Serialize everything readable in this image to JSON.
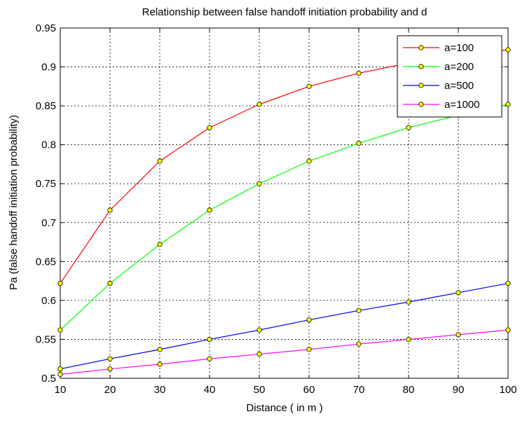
{
  "chart_data": {
    "type": "line",
    "title": "Relationship between false handoff initiation probability and d",
    "xlabel": "Distance ( in m )",
    "ylabel": "Pa (false handoff initiation probability)",
    "xlim": [
      10,
      100
    ],
    "ylim": [
      0.5,
      0.95
    ],
    "xticks": [
      10,
      20,
      30,
      40,
      50,
      60,
      70,
      80,
      90,
      100
    ],
    "yticks": [
      0.5,
      0.55,
      0.6,
      0.65,
      0.7,
      0.75,
      0.8,
      0.85,
      0.9,
      0.95
    ],
    "grid": true,
    "legend_position": "top-right",
    "marker_fill": "#ffff00",
    "x": [
      10,
      20,
      30,
      40,
      50,
      60,
      70,
      80,
      90,
      100
    ],
    "series": [
      {
        "name": "a=100",
        "color": "#ff0000",
        "values": [
          0.622,
          0.716,
          0.779,
          0.822,
          0.852,
          0.875,
          0.892,
          0.905,
          0.914,
          0.922
        ]
      },
      {
        "name": "a=200",
        "color": "#00ff00",
        "values": [
          0.562,
          0.622,
          0.672,
          0.716,
          0.75,
          0.779,
          0.802,
          0.822,
          0.838,
          0.852
        ]
      },
      {
        "name": "a=500",
        "color": "#0000ff",
        "values": [
          0.512,
          0.525,
          0.537,
          0.55,
          0.562,
          0.575,
          0.587,
          0.598,
          0.61,
          0.622
        ]
      },
      {
        "name": "a=1000",
        "color": "#ff00ff",
        "values": [
          0.505,
          0.512,
          0.518,
          0.525,
          0.531,
          0.537,
          0.544,
          0.55,
          0.556,
          0.562
        ]
      }
    ]
  }
}
